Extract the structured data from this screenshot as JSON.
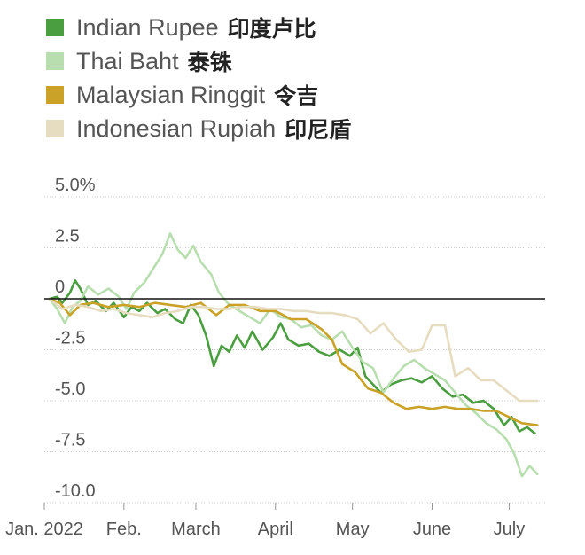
{
  "legend": [
    {
      "label": "Indian Rupee",
      "label_cn": "印度卢比",
      "color": "#4a9e3f"
    },
    {
      "label": "Thai Baht",
      "label_cn": "泰铢",
      "color": "#b8deb0"
    },
    {
      "label": "Malaysian Ringgit",
      "label_cn": "令吉",
      "color": "#c9a227"
    },
    {
      "label": "Indonesian Rupiah",
      "label_cn": "印尼盾",
      "color": "#e6dcc0"
    }
  ],
  "chart_data": {
    "type": "line",
    "title": "",
    "xlabel": "",
    "ylabel": "",
    "ylim": [
      -10,
      5
    ],
    "xlim": [
      "2022-01-01",
      "2022-07-15"
    ],
    "y_ticks": [
      "5.0%",
      "2.5",
      "0",
      "-2.5",
      "-5.0",
      "-7.5",
      "-10.0"
    ],
    "y_tick_values": [
      5,
      2.5,
      0,
      -2.5,
      -5,
      -7.5,
      -10
    ],
    "x_ticks": [
      "Jan. 2022",
      "Feb.",
      "March",
      "April",
      "May",
      "June",
      "July"
    ],
    "x_tick_dates": [
      "2022-01-01",
      "2022-02-01",
      "2022-03-01",
      "2022-04-01",
      "2022-05-01",
      "2022-06-01",
      "2022-07-01"
    ],
    "zero_line": true,
    "grid": "horizontal-dotted",
    "series": [
      {
        "name": "Indian Rupee",
        "color": "#4a9e3f",
        "points": [
          [
            "2022-01-03",
            0.0
          ],
          [
            "2022-01-06",
            0.1
          ],
          [
            "2022-01-08",
            -0.2
          ],
          [
            "2022-01-11",
            0.3
          ],
          [
            "2022-01-13",
            0.9
          ],
          [
            "2022-01-15",
            0.5
          ],
          [
            "2022-01-18",
            -0.3
          ],
          [
            "2022-01-21",
            -0.1
          ],
          [
            "2022-01-25",
            -0.6
          ],
          [
            "2022-01-28",
            -0.2
          ],
          [
            "2022-02-01",
            -0.9
          ],
          [
            "2022-02-04",
            -0.4
          ],
          [
            "2022-02-07",
            -0.6
          ],
          [
            "2022-02-10",
            -0.2
          ],
          [
            "2022-02-14",
            -0.7
          ],
          [
            "2022-02-17",
            -0.5
          ],
          [
            "2022-02-21",
            -1.0
          ],
          [
            "2022-02-24",
            -1.2
          ],
          [
            "2022-02-27",
            -0.3
          ],
          [
            "2022-03-02",
            -0.8
          ],
          [
            "2022-03-05",
            -1.8
          ],
          [
            "2022-03-08",
            -3.3
          ],
          [
            "2022-03-11",
            -2.3
          ],
          [
            "2022-03-14",
            -2.6
          ],
          [
            "2022-03-17",
            -1.8
          ],
          [
            "2022-03-20",
            -2.4
          ],
          [
            "2022-03-23",
            -1.6
          ],
          [
            "2022-03-27",
            -2.5
          ],
          [
            "2022-03-31",
            -1.9
          ],
          [
            "2022-04-03",
            -1.2
          ],
          [
            "2022-04-06",
            -2.0
          ],
          [
            "2022-04-10",
            -2.3
          ],
          [
            "2022-04-14",
            -2.2
          ],
          [
            "2022-04-18",
            -2.6
          ],
          [
            "2022-04-22",
            -2.8
          ],
          [
            "2022-04-26",
            -2.5
          ],
          [
            "2022-04-30",
            -2.8
          ],
          [
            "2022-05-03",
            -2.4
          ],
          [
            "2022-05-06",
            -3.8
          ],
          [
            "2022-05-09",
            -4.2
          ],
          [
            "2022-05-12",
            -4.6
          ],
          [
            "2022-05-16",
            -4.2
          ],
          [
            "2022-05-20",
            -4.0
          ],
          [
            "2022-05-24",
            -3.9
          ],
          [
            "2022-05-28",
            -4.1
          ],
          [
            "2022-06-01",
            -3.8
          ],
          [
            "2022-06-05",
            -4.4
          ],
          [
            "2022-06-09",
            -4.8
          ],
          [
            "2022-06-13",
            -4.7
          ],
          [
            "2022-06-17",
            -5.1
          ],
          [
            "2022-06-21",
            -5.0
          ],
          [
            "2022-06-25",
            -5.4
          ],
          [
            "2022-06-29",
            -6.2
          ],
          [
            "2022-07-02",
            -5.8
          ],
          [
            "2022-07-05",
            -6.5
          ],
          [
            "2022-07-08",
            -6.3
          ],
          [
            "2022-07-11",
            -6.6
          ]
        ]
      },
      {
        "name": "Thai Baht",
        "color": "#b8deb0",
        "points": [
          [
            "2022-01-03",
            0.0
          ],
          [
            "2022-01-06",
            -0.5
          ],
          [
            "2022-01-09",
            -1.2
          ],
          [
            "2022-01-12",
            -0.4
          ],
          [
            "2022-01-15",
            -0.1
          ],
          [
            "2022-01-18",
            0.6
          ],
          [
            "2022-01-22",
            0.2
          ],
          [
            "2022-01-26",
            0.5
          ],
          [
            "2022-01-30",
            0.1
          ],
          [
            "2022-02-02",
            -0.5
          ],
          [
            "2022-02-05",
            0.3
          ],
          [
            "2022-02-09",
            0.8
          ],
          [
            "2022-02-13",
            1.6
          ],
          [
            "2022-02-16",
            2.2
          ],
          [
            "2022-02-19",
            3.2
          ],
          [
            "2022-02-22",
            2.4
          ],
          [
            "2022-02-25",
            2.0
          ],
          [
            "2022-02-28",
            2.6
          ],
          [
            "2022-03-03",
            1.8
          ],
          [
            "2022-03-07",
            1.2
          ],
          [
            "2022-03-10",
            0.3
          ],
          [
            "2022-03-14",
            -0.3
          ],
          [
            "2022-03-18",
            -0.6
          ],
          [
            "2022-03-22",
            -0.9
          ],
          [
            "2022-03-26",
            -1.2
          ],
          [
            "2022-03-30",
            -0.5
          ],
          [
            "2022-04-03",
            -0.9
          ],
          [
            "2022-04-07",
            -1.0
          ],
          [
            "2022-04-11",
            -1.4
          ],
          [
            "2022-04-15",
            -1.3
          ],
          [
            "2022-04-19",
            -1.8
          ],
          [
            "2022-04-23",
            -2.0
          ],
          [
            "2022-04-27",
            -1.6
          ],
          [
            "2022-05-01",
            -2.4
          ],
          [
            "2022-05-05",
            -3.1
          ],
          [
            "2022-05-09",
            -3.4
          ],
          [
            "2022-05-13",
            -4.6
          ],
          [
            "2022-05-17",
            -3.9
          ],
          [
            "2022-05-21",
            -3.3
          ],
          [
            "2022-05-25",
            -3.0
          ],
          [
            "2022-05-29",
            -3.4
          ],
          [
            "2022-06-02",
            -3.7
          ],
          [
            "2022-06-06",
            -4.0
          ],
          [
            "2022-06-10",
            -4.6
          ],
          [
            "2022-06-14",
            -5.2
          ],
          [
            "2022-06-18",
            -5.6
          ],
          [
            "2022-06-22",
            -6.1
          ],
          [
            "2022-06-26",
            -6.4
          ],
          [
            "2022-06-30",
            -6.9
          ],
          [
            "2022-07-03",
            -7.6
          ],
          [
            "2022-07-06",
            -8.7
          ],
          [
            "2022-07-09",
            -8.2
          ],
          [
            "2022-07-12",
            -8.6
          ]
        ]
      },
      {
        "name": "Malaysian Ringgit",
        "color": "#c9a227",
        "points": [
          [
            "2022-01-03",
            0.0
          ],
          [
            "2022-01-07",
            -0.2
          ],
          [
            "2022-01-11",
            -0.8
          ],
          [
            "2022-01-15",
            -0.3
          ],
          [
            "2022-01-20",
            -0.2
          ],
          [
            "2022-01-26",
            -0.4
          ],
          [
            "2022-02-01",
            -0.3
          ],
          [
            "2022-02-07",
            -0.4
          ],
          [
            "2022-02-13",
            -0.2
          ],
          [
            "2022-02-19",
            -0.3
          ],
          [
            "2022-02-25",
            -0.4
          ],
          [
            "2022-03-03",
            -0.2
          ],
          [
            "2022-03-09",
            -0.8
          ],
          [
            "2022-03-14",
            -0.3
          ],
          [
            "2022-03-20",
            -0.3
          ],
          [
            "2022-03-26",
            -0.6
          ],
          [
            "2022-04-01",
            -0.6
          ],
          [
            "2022-04-07",
            -1.0
          ],
          [
            "2022-04-13",
            -1.0
          ],
          [
            "2022-04-19",
            -1.5
          ],
          [
            "2022-04-23",
            -2.0
          ],
          [
            "2022-04-27",
            -3.2
          ],
          [
            "2022-05-02",
            -3.6
          ],
          [
            "2022-05-07",
            -4.4
          ],
          [
            "2022-05-12",
            -4.6
          ],
          [
            "2022-05-17",
            -5.1
          ],
          [
            "2022-05-22",
            -5.4
          ],
          [
            "2022-05-27",
            -5.3
          ],
          [
            "2022-06-01",
            -5.4
          ],
          [
            "2022-06-06",
            -5.3
          ],
          [
            "2022-06-11",
            -5.4
          ],
          [
            "2022-06-16",
            -5.4
          ],
          [
            "2022-06-21",
            -5.5
          ],
          [
            "2022-06-26",
            -5.5
          ],
          [
            "2022-07-01",
            -5.8
          ],
          [
            "2022-07-06",
            -6.1
          ],
          [
            "2022-07-12",
            -6.2
          ]
        ]
      },
      {
        "name": "Indonesian Rupiah",
        "color": "#e6dcc0",
        "points": [
          [
            "2022-01-03",
            0.0
          ],
          [
            "2022-01-08",
            -0.5
          ],
          [
            "2022-01-13",
            -0.3
          ],
          [
            "2022-01-18",
            -0.4
          ],
          [
            "2022-01-23",
            -0.6
          ],
          [
            "2022-01-28",
            -0.5
          ],
          [
            "2022-02-02",
            -0.7
          ],
          [
            "2022-02-07",
            -0.8
          ],
          [
            "2022-02-12",
            -0.9
          ],
          [
            "2022-02-17",
            -0.7
          ],
          [
            "2022-02-22",
            -0.6
          ],
          [
            "2022-02-27",
            -0.4
          ],
          [
            "2022-03-04",
            -0.4
          ],
          [
            "2022-03-09",
            -0.5
          ],
          [
            "2022-03-14",
            -0.5
          ],
          [
            "2022-03-19",
            -0.4
          ],
          [
            "2022-03-24",
            -0.4
          ],
          [
            "2022-03-29",
            -0.5
          ],
          [
            "2022-04-03",
            -0.5
          ],
          [
            "2022-04-08",
            -0.6
          ],
          [
            "2022-04-13",
            -0.6
          ],
          [
            "2022-04-18",
            -0.7
          ],
          [
            "2022-04-23",
            -0.7
          ],
          [
            "2022-04-28",
            -0.8
          ],
          [
            "2022-05-03",
            -1.0
          ],
          [
            "2022-05-08",
            -1.7
          ],
          [
            "2022-05-13",
            -1.2
          ],
          [
            "2022-05-18",
            -2.0
          ],
          [
            "2022-05-23",
            -2.6
          ],
          [
            "2022-05-28",
            -2.5
          ],
          [
            "2022-06-01",
            -1.3
          ],
          [
            "2022-06-06",
            -1.3
          ],
          [
            "2022-06-10",
            -3.8
          ],
          [
            "2022-06-15",
            -3.4
          ],
          [
            "2022-06-20",
            -4.0
          ],
          [
            "2022-06-25",
            -4.0
          ],
          [
            "2022-06-30",
            -4.5
          ],
          [
            "2022-07-05",
            -5.0
          ],
          [
            "2022-07-12",
            -5.0
          ]
        ]
      }
    ]
  }
}
